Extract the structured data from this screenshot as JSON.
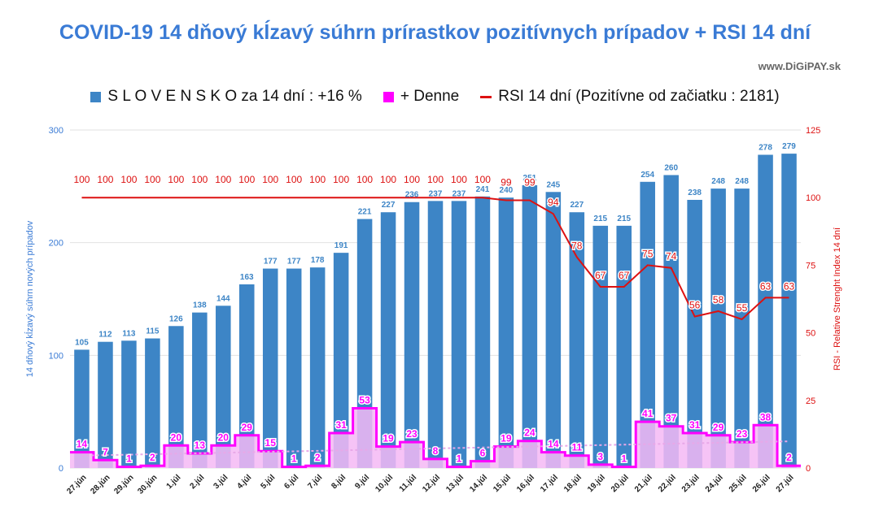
{
  "header": {
    "title": "COVID-19 14 dňový kĺzavý súhrn prírastkov pozitívnych prípadov + RSI 14 dní",
    "watermark": "www.DiGiPAY.sk"
  },
  "legend": {
    "bars": "S L O V E N S K O za 14 dní : +16 %",
    "daily": "+ Denne",
    "rsi": "RSI 14 dní (Pozitívne od začiatku : 2181)"
  },
  "colors": {
    "bars": "#3d85c6",
    "daily": "#ff00ff",
    "daily_fill": "#f4b8f4",
    "rsi": "#dd1111",
    "trend": "#e8a8e8",
    "left_axis": "#3a7bd5",
    "right_axis": "#dd1111"
  },
  "chart_data": {
    "type": "bar",
    "categories": [
      "27.jún",
      "28.jún",
      "29.jún",
      "30.jún",
      "1.júl",
      "2.júl",
      "3.júl",
      "4.júl",
      "5.júl",
      "6.júl",
      "7.júl",
      "8.júl",
      "9.júl",
      "10.júl",
      "11.júl",
      "12.júl",
      "13.júl",
      "14.júl",
      "15.júl",
      "16.júl",
      "17.júl",
      "18.júl",
      "19.júl",
      "20.júl",
      "21.júl",
      "22.júl",
      "23.júl",
      "24.júl",
      "25.júl",
      "26.júl",
      "27.júl"
    ],
    "series": [
      {
        "name": "S L O V E N S K O za 14 dní : +16 %",
        "axis": "left",
        "values": [
          105,
          112,
          113,
          115,
          126,
          138,
          144,
          163,
          177,
          177,
          178,
          191,
          221,
          227,
          236,
          237,
          237,
          241,
          240,
          251,
          245,
          227,
          215,
          215,
          254,
          260,
          238,
          248,
          248,
          278,
          279
        ]
      },
      {
        "name": "+ Denne",
        "axis": "left",
        "values": [
          14,
          7,
          1,
          2,
          20,
          13,
          20,
          29,
          15,
          1,
          2,
          31,
          53,
          19,
          23,
          8,
          1,
          6,
          19,
          24,
          14,
          11,
          3,
          1,
          41,
          37,
          31,
          29,
          23,
          38,
          2
        ]
      },
      {
        "name": "RSI 14 dní (Pozitívne od začiatku : 2181)",
        "axis": "right",
        "values": [
          100,
          100,
          100,
          100,
          100,
          100,
          100,
          100,
          100,
          100,
          100,
          100,
          100,
          100,
          100,
          100,
          100,
          100,
          99,
          99,
          94,
          78,
          67,
          67,
          75,
          74,
          56,
          58,
          55,
          63,
          63
        ]
      }
    ],
    "ylabel": "14 dňový kĺzavý  súhrn nových prípadov",
    "y2label": "RSI - Relative Strenght Index 14 dní",
    "ylim": [
      0,
      300
    ],
    "y2lim": [
      0,
      125
    ],
    "yticks": [
      0,
      100,
      200,
      300
    ],
    "y2ticks": [
      0,
      25,
      50,
      75,
      100,
      125
    ],
    "grid": true
  }
}
